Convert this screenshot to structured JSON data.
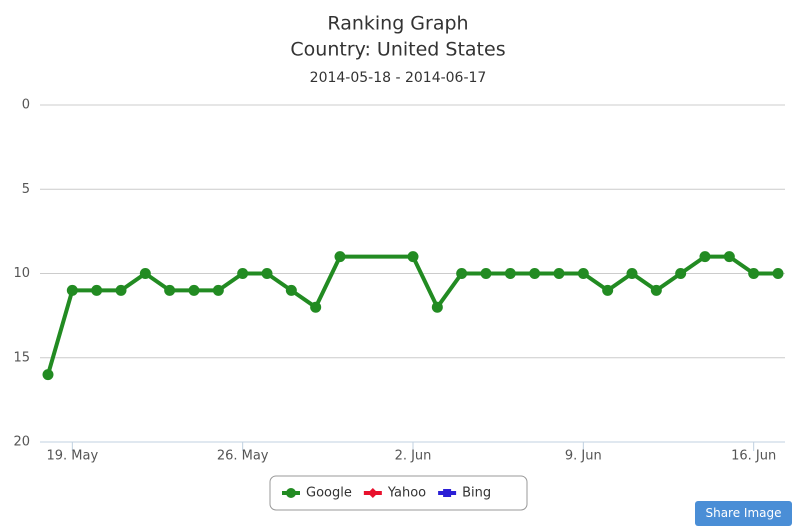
{
  "chart_data": {
    "type": "line",
    "title": [
      "Ranking Graph",
      "Country: United States"
    ],
    "subtitle": "2014-05-18 - 2014-06-17",
    "x": [
      "18. May",
      "19. May",
      "20. May",
      "21. May",
      "22. May",
      "23. May",
      "24. May",
      "25. May",
      "26. May",
      "27. May",
      "28. May",
      "29. May",
      "30. May",
      "31. May",
      "1. Jun",
      "2. Jun",
      "3. Jun",
      "4. Jun",
      "5. Jun",
      "6. Jun",
      "7. Jun",
      "8. Jun",
      "9. Jun",
      "10. Jun",
      "11. Jun",
      "12. Jun",
      "13. Jun",
      "14. Jun",
      "15. Jun",
      "16. Jun",
      "17. Jun"
    ],
    "series": [
      {
        "name": "Google",
        "color": "#228b22",
        "marker": "circle",
        "values": [
          16,
          11,
          11,
          11,
          10,
          11,
          11,
          11,
          10,
          10,
          11,
          12,
          9,
          null,
          null,
          9,
          12,
          10,
          10,
          10,
          10,
          10,
          10,
          11,
          10,
          11,
          10,
          9,
          9,
          10,
          10
        ]
      },
      {
        "name": "Yahoo",
        "color": "#e8112d",
        "marker": "diamond",
        "values": [
          null,
          null,
          null,
          null,
          null,
          null,
          null,
          null,
          null,
          null,
          null,
          null,
          null,
          null,
          null,
          null,
          null,
          null,
          null,
          null,
          null,
          null,
          null,
          null,
          null,
          null,
          null,
          null,
          null,
          null,
          null
        ]
      },
      {
        "name": "Bing",
        "color": "#2b1fd6",
        "marker": "square",
        "values": [
          null,
          null,
          null,
          null,
          null,
          null,
          null,
          null,
          null,
          null,
          null,
          null,
          null,
          null,
          null,
          null,
          null,
          null,
          null,
          null,
          null,
          null,
          null,
          null,
          null,
          null,
          null,
          null,
          null,
          null,
          null
        ]
      }
    ],
    "connect_nulls": true,
    "xlim": [
      "18. May",
      "17. Jun"
    ],
    "xticks": [
      "19. May",
      "26. May",
      "2. Jun",
      "9. Jun",
      "16. Jun"
    ],
    "ylim": [
      0,
      20
    ],
    "y_reversed": true,
    "yticks": [
      0,
      5,
      10,
      15,
      20
    ],
    "grid": true,
    "legend": "bottom"
  },
  "share_button": "Share Image"
}
